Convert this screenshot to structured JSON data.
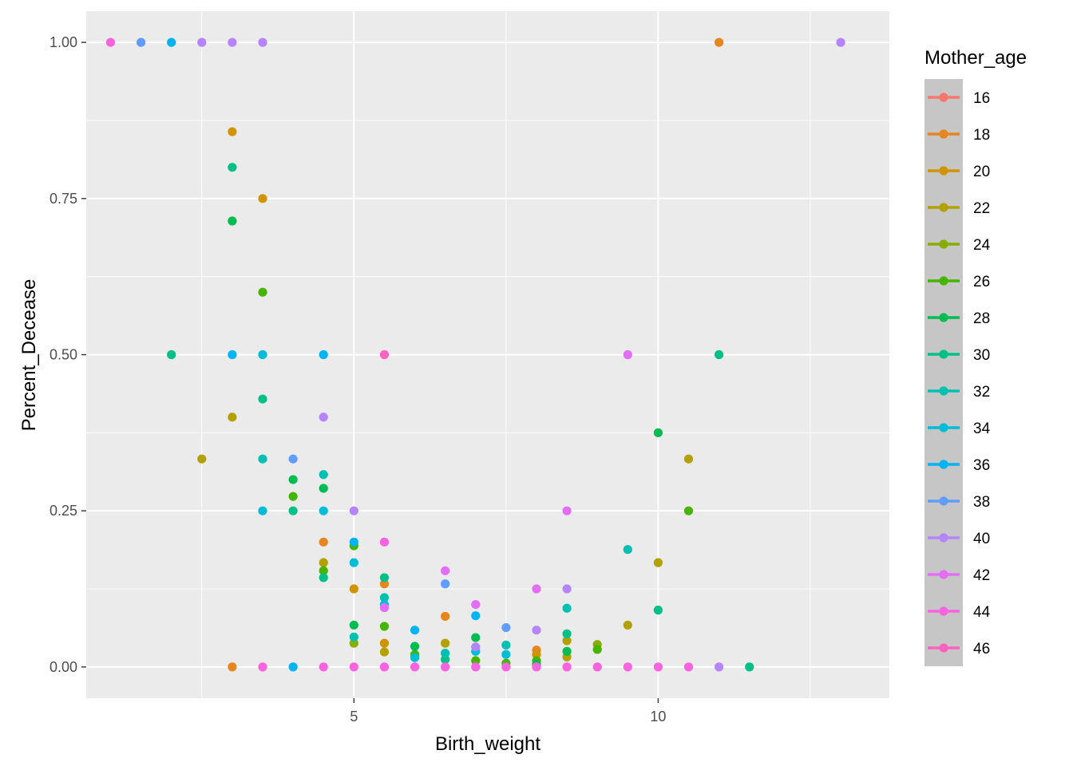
{
  "chart_data": {
    "type": "scatter",
    "title": "",
    "xlabel": "Birth_weight",
    "ylabel": "Percent_Decease",
    "xlim": [
      0.6,
      13.8
    ],
    "ylim": [
      -0.05,
      1.05
    ],
    "x_ticks": [
      5,
      10
    ],
    "x_tick_labels": [
      "5",
      "10"
    ],
    "y_ticks": [
      0,
      0.25,
      0.5,
      0.75,
      1.0
    ],
    "y_tick_labels": [
      "0.00",
      "0.25",
      "0.50",
      "0.75",
      "1.00"
    ],
    "grid": true,
    "legend": {
      "title": "Mother_age",
      "position": "right",
      "entries": [
        "16",
        "18",
        "20",
        "22",
        "24",
        "26",
        "28",
        "30",
        "32",
        "34",
        "36",
        "38",
        "40",
        "42",
        "44",
        "46"
      ],
      "colors": [
        "#F8766D",
        "#E7851E",
        "#D09400",
        "#B2A100",
        "#89AC00",
        "#45B500",
        "#00BC51",
        "#00C087",
        "#00C0B2",
        "#00BCD6",
        "#00B3F2",
        "#619CFF",
        "#B684FF",
        "#E46DF6",
        "#F863DF",
        "#FF62BF"
      ]
    },
    "series": [
      {
        "name": "16",
        "color": "#F8766D",
        "points": []
      },
      {
        "name": "18",
        "color": "#E7851E",
        "points": [
          [
            3,
            0
          ],
          [
            4.5,
            0.2
          ],
          [
            5.5,
            0.133
          ],
          [
            6.5,
            0.081
          ],
          [
            8,
            0.027
          ],
          [
            11,
            1.0
          ]
        ]
      },
      {
        "name": "20",
        "color": "#D09400",
        "points": [
          [
            3,
            0.857
          ],
          [
            3.5,
            0.75
          ],
          [
            5,
            0.125
          ],
          [
            5.5,
            0.038
          ],
          [
            8,
            0.02
          ]
        ]
      },
      {
        "name": "22",
        "color": "#B2A100",
        "points": [
          [
            2.5,
            0.333
          ],
          [
            3,
            0.4
          ],
          [
            4.5,
            0.167
          ],
          [
            5.5,
            0.024
          ],
          [
            6.5,
            0.038
          ],
          [
            8.5,
            0.042
          ],
          [
            8.5,
            0.016
          ],
          [
            9.5,
            0.067
          ],
          [
            10,
            0.167
          ],
          [
            10.5,
            0.333
          ]
        ]
      },
      {
        "name": "24",
        "color": "#89AC00",
        "points": [
          [
            5,
            0.038
          ],
          [
            9,
            0.036
          ]
        ]
      },
      {
        "name": "26",
        "color": "#45B500",
        "points": [
          [
            3.5,
            0.6
          ],
          [
            4,
            0.273
          ],
          [
            4.5,
            0.154
          ],
          [
            5,
            0.194
          ],
          [
            5.5,
            0.065
          ],
          [
            6,
            0.02
          ],
          [
            7,
            0.01
          ],
          [
            7.5,
            0.006
          ],
          [
            8,
            0.01
          ],
          [
            9,
            0.028
          ],
          [
            10.5,
            0.25
          ]
        ]
      },
      {
        "name": "28",
        "color": "#00BC51",
        "points": [
          [
            3,
            0.714
          ],
          [
            4,
            0.3
          ],
          [
            4.5,
            0.286
          ],
          [
            5,
            0.067
          ],
          [
            6,
            0.033
          ],
          [
            7,
            0.047
          ],
          [
            8,
            0.004
          ],
          [
            8.5,
            0.025
          ],
          [
            10,
            0.375
          ]
        ]
      },
      {
        "name": "30",
        "color": "#00C087",
        "points": [
          [
            2,
            0.5
          ],
          [
            3,
            0.8
          ],
          [
            3.5,
            0.429
          ],
          [
            4,
            0.25
          ],
          [
            4.5,
            0.143
          ],
          [
            5.5,
            0.143
          ],
          [
            6.5,
            0.012
          ],
          [
            8.5,
            0.053
          ],
          [
            10,
            0.091
          ],
          [
            11,
            0.5
          ],
          [
            11.5,
            0
          ]
        ]
      },
      {
        "name": "32",
        "color": "#00C0B2",
        "points": [
          [
            3.5,
            0.333
          ],
          [
            4.5,
            0.308
          ],
          [
            5,
            0.048
          ],
          [
            5.5,
            0.111
          ],
          [
            6.5,
            0.022
          ],
          [
            7.5,
            0.035
          ],
          [
            8.5,
            0.094
          ],
          [
            9.5,
            0.188
          ]
        ]
      },
      {
        "name": "34",
        "color": "#00BCD6",
        "points": [
          [
            3.5,
            0.25
          ],
          [
            3.5,
            0.5
          ],
          [
            4.5,
            0.25
          ],
          [
            5,
            0.167
          ],
          [
            5.5,
            0.1
          ],
          [
            6,
            0.015
          ],
          [
            7,
            0.025
          ],
          [
            7.5,
            0.02
          ]
        ]
      },
      {
        "name": "36",
        "color": "#00B3F2",
        "points": [
          [
            2,
            1.0
          ],
          [
            3,
            0.5
          ],
          [
            4,
            0
          ],
          [
            4.5,
            0.5
          ],
          [
            5,
            0.2
          ],
          [
            6,
            0.059
          ],
          [
            7,
            0.082
          ]
        ]
      },
      {
        "name": "38",
        "color": "#619CFF",
        "points": [
          [
            1.5,
            1.0
          ],
          [
            4,
            0.333
          ],
          [
            6.5,
            0.133
          ],
          [
            7.5,
            0.063
          ]
        ]
      },
      {
        "name": "40",
        "color": "#B684FF",
        "points": [
          [
            2.5,
            1.0
          ],
          [
            3,
            1.0
          ],
          [
            3.5,
            1.0
          ],
          [
            4.5,
            0.4
          ],
          [
            5,
            0.25
          ],
          [
            7,
            0.032
          ],
          [
            8,
            0.059
          ],
          [
            8.5,
            0.125
          ],
          [
            11,
            0
          ],
          [
            13,
            1.0
          ]
        ]
      },
      {
        "name": "42",
        "color": "#E46DF6",
        "points": [
          [
            5.5,
            0.095
          ],
          [
            6.5,
            0.154
          ],
          [
            7,
            0.1
          ],
          [
            8,
            0.125
          ],
          [
            8.5,
            0.25
          ],
          [
            9.5,
            0.5
          ]
        ]
      },
      {
        "name": "44",
        "color": "#F863DF",
        "points": [
          [
            1,
            1.0
          ],
          [
            3.5,
            0
          ],
          [
            4.5,
            0
          ],
          [
            5,
            0
          ],
          [
            5.5,
            0.2
          ],
          [
            5.5,
            0
          ],
          [
            6,
            0
          ],
          [
            6.5,
            0
          ],
          [
            7,
            0
          ],
          [
            7.5,
            0
          ],
          [
            8,
            0
          ],
          [
            8.5,
            0
          ],
          [
            9,
            0
          ],
          [
            9.5,
            0
          ],
          [
            10,
            0
          ],
          [
            10.5,
            0
          ]
        ]
      },
      {
        "name": "46",
        "color": "#FF62BF",
        "points": [
          [
            5.5,
            0.5
          ]
        ]
      }
    ]
  }
}
